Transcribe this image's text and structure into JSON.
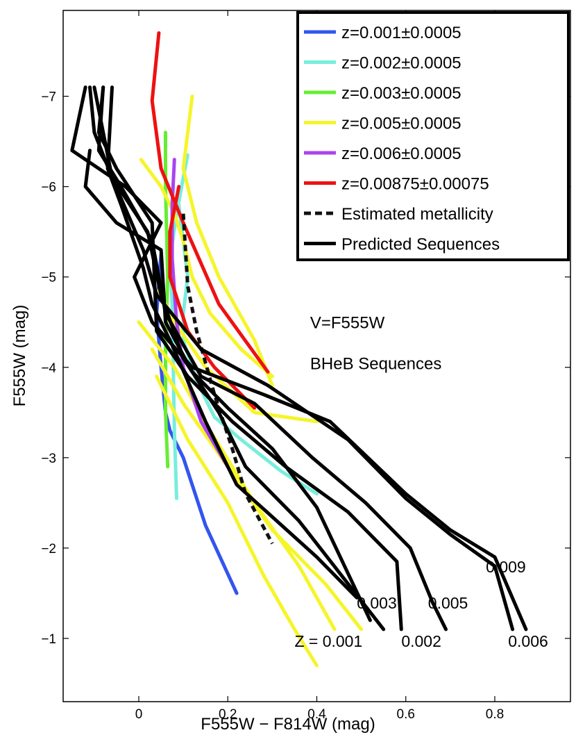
{
  "chart_data": {
    "type": "line",
    "xlabel": "F555W − F814W (mag)",
    "ylabel": "F555W (mag)",
    "xlim": [
      -0.17,
      0.97
    ],
    "ylim": [
      -7.95,
      -0.3
    ],
    "y_inverted": true,
    "grid": false,
    "legend_position": "top-right",
    "xticks": [
      {
        "value": 0,
        "label": "0"
      },
      {
        "value": 0.2,
        "label": "0.2"
      },
      {
        "value": 0.4,
        "label": "0.4"
      },
      {
        "value": 0.6,
        "label": "0.6"
      },
      {
        "value": 0.8,
        "label": "0.8"
      }
    ],
    "yticks": [
      {
        "value": -7,
        "label": "−7"
      },
      {
        "value": -6,
        "label": "−6"
      },
      {
        "value": -5,
        "label": "−5"
      },
      {
        "value": -4,
        "label": "−4"
      },
      {
        "value": -3,
        "label": "−3"
      },
      {
        "value": -2,
        "label": "−2"
      },
      {
        "value": -1,
        "label": "−1"
      }
    ],
    "annotations": [
      {
        "text": "V=F555W",
        "x": 0.385,
        "y": -4.5
      },
      {
        "text": "BHeB Sequences",
        "x": 0.385,
        "y": -4.05
      }
    ],
    "z_labels": [
      {
        "text": "Z = 0.001",
        "x": 0.35,
        "y": -0.97
      },
      {
        "text": "0.002",
        "x": 0.59,
        "y": -0.97
      },
      {
        "text": "0.003",
        "x": 0.49,
        "y": -1.39
      },
      {
        "text": "0.005",
        "x": 0.65,
        "y": -1.39
      },
      {
        "text": "0.006",
        "x": 0.83,
        "y": -0.97
      },
      {
        "text": "0.009",
        "x": 0.78,
        "y": -1.79
      }
    ],
    "series": [
      {
        "name": "z=0.001±0.0005",
        "color": "#3355ee",
        "dash": "solid",
        "in_legend": true,
        "x": [
          0.05,
          0.04,
          0.05,
          0.06,
          0.07,
          0.1,
          0.15,
          0.22
        ],
        "y": [
          -5.25,
          -4.6,
          -4.0,
          -3.5,
          -3.3,
          -3.0,
          -2.25,
          -1.5
        ]
      },
      {
        "name": "z=0.002±0.0005",
        "color": "#77eedd",
        "dash": "solid",
        "in_legend": true,
        "x": [
          0.11,
          0.1,
          0.085,
          0.07,
          0.075,
          0.08,
          0.085,
          null,
          0.09,
          0.1,
          0.11,
          0.1,
          0.1,
          0.13,
          0.17,
          0.23,
          0.32,
          0.4
        ],
        "y": [
          -6.35,
          -6.1,
          -5.7,
          -5.2,
          -4.7,
          -3.3,
          -2.55,
          null,
          -5.8,
          -5.4,
          -5.0,
          -4.6,
          -4.3,
          -3.85,
          -3.45,
          -3.2,
          -2.85,
          -2.6
        ]
      },
      {
        "name": "z=0.003±0.0005",
        "color": "#66ee33",
        "dash": "solid",
        "in_legend": true,
        "x": [
          0.06,
          0.06,
          0.065,
          0.06,
          0.06,
          0.065
        ],
        "y": [
          -6.6,
          -6.0,
          -5.0,
          -4.2,
          -3.5,
          -2.9
        ]
      },
      {
        "name": "z=0.005±0.0005",
        "color": "#f5f52a",
        "dash": "solid",
        "in_legend": true,
        "x": [
          0.12,
          0.1,
          0.13,
          0.18,
          0.26,
          0.3,
          null,
          0.005,
          0.05,
          0.08,
          0.1,
          0.12,
          0.16,
          0.23,
          0.3,
          null,
          0.045,
          0.08,
          0.15,
          0.26,
          0.4,
          null,
          0.0,
          0.08,
          0.16,
          0.26,
          0.36,
          0.44,
          null,
          0.03,
          0.1,
          0.2,
          0.3,
          0.42,
          0.5,
          null,
          0.04,
          0.11,
          0.2,
          0.28,
          0.35,
          0.4
        ],
        "y": [
          -7.0,
          -6.2,
          -5.6,
          -5.0,
          -4.3,
          -3.8,
          null,
          -6.3,
          -6.0,
          -5.7,
          -5.4,
          -5.0,
          -4.6,
          -4.2,
          -3.9,
          null,
          -4.85,
          -4.5,
          -4.0,
          -3.5,
          -3.4,
          null,
          -4.5,
          -4.0,
          -3.3,
          -2.5,
          -1.8,
          -1.1,
          null,
          -4.2,
          -3.6,
          -2.9,
          -2.2,
          -1.6,
          -1.1,
          null,
          -3.9,
          -3.2,
          -2.5,
          -1.7,
          -1.1,
          -0.7
        ]
      },
      {
        "name": "z=0.006±0.0005",
        "color": "#aa44ee",
        "dash": "solid",
        "in_legend": true,
        "x": [
          0.08,
          0.075,
          0.075,
          0.085,
          0.1,
          0.14,
          0.2
        ],
        "y": [
          -6.3,
          -5.8,
          -5.2,
          -4.5,
          -4.0,
          -3.4,
          -2.9
        ]
      },
      {
        "name": "z=0.00875±0.00075",
        "color": "#ee1111",
        "dash": "solid",
        "in_legend": true,
        "x": [
          0.045,
          0.03,
          0.05,
          0.1,
          0.18,
          0.29,
          null,
          0.09,
          0.07,
          0.07,
          0.11,
          0.17,
          0.26
        ],
        "y": [
          -7.7,
          -6.95,
          -6.2,
          -5.6,
          -4.7,
          -3.95,
          null,
          -6.0,
          -5.5,
          -5.0,
          -4.4,
          -4.0,
          -3.55
        ]
      },
      {
        "name": "Estimated metallicity",
        "color": "#111111",
        "dash": "dashed",
        "in_legend": true,
        "x": [
          0.1,
          0.11,
          0.13,
          0.17,
          0.21,
          0.24,
          0.3
        ],
        "y": [
          -5.7,
          -4.9,
          -4.4,
          -3.7,
          -3.1,
          -2.6,
          -2.05
        ]
      },
      {
        "name": "Predicted Sequences",
        "color": "#000000",
        "dash": "solid",
        "in_legend": true,
        "x": [
          -0.12,
          -0.15,
          -0.03,
          0.05,
          -0.01,
          0.03,
          0.12,
          0.28,
          0.43,
          0.6,
          0.7,
          0.8,
          0.87,
          null,
          -0.11,
          -0.1,
          -0.06,
          0.01,
          0.04,
          0.14,
          0.29,
          0.47,
          0.6,
          0.7,
          0.8,
          0.84,
          null,
          -0.08,
          -0.09,
          -0.04,
          0.03,
          0.06,
          0.14,
          0.26,
          0.39,
          0.51,
          0.61,
          0.66,
          0.69,
          null,
          -0.08,
          -0.09,
          -0.05,
          0.03,
          0.04,
          0.11,
          0.21,
          0.33,
          0.47,
          0.58,
          0.59,
          null,
          -0.1,
          -0.08,
          -0.06,
          0.02,
          0.05,
          0.1,
          0.18,
          0.24,
          0.36,
          0.55,
          null,
          -0.06,
          -0.07,
          -0.04,
          0.01,
          0.03,
          0.07,
          0.15,
          0.22,
          0.4,
          0.49,
          null,
          -0.11,
          -0.12,
          -0.05,
          0.05,
          0.06,
          0.12,
          0.2,
          0.3,
          0.4,
          0.52
        ],
        "y": [
          -7.1,
          -6.4,
          -6.0,
          -5.6,
          -5.0,
          -4.5,
          -4.0,
          -3.7,
          -3.4,
          -2.6,
          -2.2,
          -1.9,
          -1.1,
          null,
          -7.1,
          -6.6,
          -6.1,
          -5.3,
          -4.8,
          -4.2,
          -3.8,
          -3.2,
          -2.55,
          -2.15,
          -1.8,
          -1.1,
          null,
          -7.1,
          -6.4,
          -6.0,
          -5.4,
          -4.6,
          -3.9,
          -3.6,
          -3.0,
          -2.5,
          -2.0,
          -1.4,
          -1.1,
          null,
          -7.1,
          -6.6,
          -6.2,
          -5.6,
          -4.4,
          -3.9,
          -3.4,
          -2.9,
          -2.4,
          -1.85,
          -1.1,
          null,
          -7.1,
          -6.6,
          -6.1,
          -5.5,
          -4.8,
          -4.1,
          -3.5,
          -2.9,
          -2.3,
          -1.1,
          null,
          -7.1,
          -6.2,
          -5.8,
          -5.1,
          -4.7,
          -4.3,
          -3.4,
          -2.7,
          -1.9,
          -1.45,
          null,
          -6.4,
          -6.0,
          -5.6,
          -5.3,
          -4.5,
          -3.95,
          -3.55,
          -3.1,
          -2.45,
          -1.2
        ]
      }
    ]
  }
}
